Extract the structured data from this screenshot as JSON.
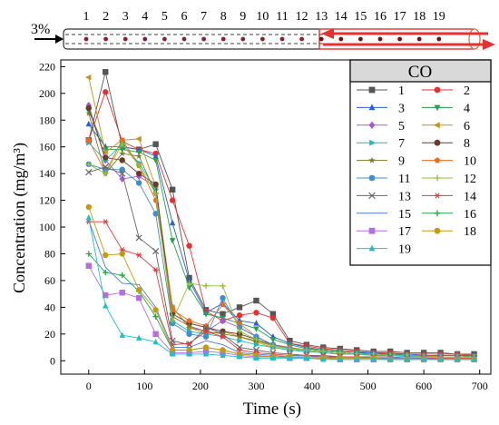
{
  "header": {
    "pct_label": "3%",
    "sensor_numbers": [
      "1",
      "2",
      "3",
      "4",
      "5",
      "6",
      "7",
      "8",
      "9",
      "10",
      "11",
      "12",
      "13",
      "14",
      "15",
      "16",
      "17",
      "18",
      "19"
    ]
  },
  "chart_data": {
    "type": "line",
    "title": "",
    "xlabel": "Time (s)",
    "ylabel": "Concentration (mg/m³)",
    "xlim": [
      -50,
      720
    ],
    "ylim": [
      -10,
      225
    ],
    "xticks": [
      0,
      100,
      200,
      300,
      400,
      500,
      600,
      700
    ],
    "yticks": [
      0,
      20,
      40,
      60,
      80,
      100,
      120,
      140,
      160,
      180,
      200,
      220
    ],
    "legend_title": "CO",
    "legend_position": "top-right",
    "x": [
      0,
      30,
      60,
      90,
      120,
      150,
      180,
      210,
      240,
      270,
      300,
      330,
      360,
      390,
      420,
      450,
      480,
      510,
      540,
      570,
      600,
      630,
      660,
      690
    ],
    "series": [
      {
        "name": "1",
        "color": "#555555",
        "marker": "square",
        "values": [
          165,
          216,
          160,
          158,
          162,
          128,
          62,
          38,
          35,
          40,
          45,
          35,
          15,
          12,
          10,
          9,
          8,
          7,
          7,
          6,
          6,
          6,
          5,
          5
        ]
      },
      {
        "name": "2",
        "color": "#e8312f",
        "marker": "circle",
        "values": [
          165,
          201,
          164,
          158,
          155,
          120,
          86,
          37,
          30,
          34,
          36,
          32,
          13,
          11,
          9,
          8,
          7,
          6,
          6,
          5,
          5,
          5,
          5,
          4
        ]
      },
      {
        "name": "3",
        "color": "#2a5fd8",
        "marker": "triangle-up",
        "values": [
          177,
          160,
          160,
          158,
          153,
          103,
          60,
          36,
          43,
          30,
          28,
          18,
          13,
          10,
          8,
          7,
          6,
          6,
          5,
          5,
          4,
          4,
          4,
          4
        ]
      },
      {
        "name": "4",
        "color": "#26a04a",
        "marker": "triangle-down",
        "values": [
          187,
          158,
          158,
          156,
          150,
          90,
          55,
          35,
          32,
          28,
          24,
          16,
          12,
          9,
          8,
          7,
          6,
          5,
          5,
          4,
          4,
          4,
          4,
          3
        ]
      },
      {
        "name": "5",
        "color": "#a55ad8",
        "marker": "diamond",
        "values": [
          191,
          150,
          136,
          138,
          130,
          40,
          25,
          22,
          30,
          25,
          18,
          12,
          10,
          8,
          7,
          6,
          5,
          5,
          4,
          4,
          4,
          3,
          3,
          3
        ]
      },
      {
        "name": "6",
        "color": "#c79215",
        "marker": "triangle-left",
        "values": [
          212,
          156,
          165,
          166,
          130,
          40,
          25,
          20,
          22,
          18,
          14,
          10,
          8,
          7,
          6,
          5,
          5,
          4,
          4,
          4,
          3,
          3,
          3,
          3
        ]
      },
      {
        "name": "7",
        "color": "#1fb8c2",
        "marker": "triangle-right",
        "values": [
          163,
          150,
          162,
          148,
          128,
          30,
          22,
          20,
          18,
          15,
          12,
          10,
          8,
          7,
          6,
          5,
          5,
          4,
          4,
          3,
          3,
          3,
          3,
          3
        ]
      },
      {
        "name": "8",
        "color": "#6b3a2a",
        "marker": "circle",
        "values": [
          189,
          152,
          150,
          140,
          132,
          35,
          28,
          25,
          22,
          20,
          16,
          12,
          9,
          8,
          7,
          6,
          5,
          5,
          4,
          4,
          4,
          3,
          3,
          3
        ]
      },
      {
        "name": "9",
        "color": "#7a7a28",
        "marker": "star",
        "values": [
          185,
          140,
          155,
          153,
          125,
          33,
          26,
          22,
          20,
          18,
          15,
          11,
          9,
          8,
          7,
          6,
          5,
          5,
          4,
          4,
          3,
          3,
          3,
          3
        ]
      },
      {
        "name": "10",
        "color": "#f06a1a",
        "marker": "pentagon",
        "values": [
          165,
          141,
          165,
          146,
          120,
          38,
          30,
          26,
          42,
          28,
          18,
          12,
          10,
          8,
          7,
          6,
          5,
          5,
          4,
          4,
          4,
          3,
          3,
          3
        ]
      },
      {
        "name": "11",
        "color": "#3d8fd1",
        "marker": "circle",
        "values": [
          147,
          143,
          143,
          133,
          110,
          28,
          20,
          18,
          47,
          25,
          18,
          12,
          9,
          8,
          7,
          6,
          5,
          5,
          4,
          4,
          3,
          3,
          3,
          3
        ]
      },
      {
        "name": "12",
        "color": "#8fc13a",
        "marker": "plus",
        "values": [
          147,
          140,
          162,
          146,
          125,
          30,
          58,
          56,
          56,
          22,
          16,
          11,
          9,
          8,
          7,
          6,
          5,
          5,
          4,
          4,
          3,
          3,
          3,
          3
        ]
      },
      {
        "name": "13",
        "color": "#666666",
        "marker": "x",
        "values": [
          141,
          145,
          140,
          92,
          82,
          15,
          12,
          25,
          20,
          10,
          8,
          6,
          5,
          4,
          4,
          3,
          3,
          3,
          3,
          2,
          2,
          2,
          2,
          2
        ]
      },
      {
        "name": "14",
        "color": "#e03a3a",
        "marker": "asterisk",
        "values": [
          104,
          104,
          83,
          79,
          68,
          12,
          13,
          22,
          18,
          8,
          6,
          5,
          4,
          4,
          3,
          3,
          3,
          2,
          2,
          2,
          2,
          2,
          2,
          2
        ]
      },
      {
        "name": "15",
        "color": "#4a7ae0",
        "marker": "none",
        "values": [
          105,
          70,
          58,
          57,
          40,
          10,
          10,
          15,
          12,
          6,
          5,
          4,
          3,
          3,
          3,
          2,
          2,
          2,
          2,
          2,
          2,
          1,
          1,
          1
        ]
      },
      {
        "name": "16",
        "color": "#22a846",
        "marker": "plus",
        "values": [
          80,
          66,
          64,
          52,
          33,
          8,
          8,
          10,
          8,
          5,
          4,
          3,
          3,
          2,
          2,
          2,
          2,
          2,
          1,
          1,
          1,
          1,
          1,
          1
        ]
      },
      {
        "name": "17",
        "color": "#b070e0",
        "marker": "square",
        "values": [
          71,
          49,
          51,
          47,
          20,
          6,
          6,
          7,
          6,
          4,
          3,
          3,
          2,
          2,
          2,
          1,
          1,
          1,
          1,
          1,
          1,
          1,
          1,
          1
        ]
      },
      {
        "name": "18",
        "color": "#c49a10",
        "marker": "circle",
        "values": [
          115,
          79,
          80,
          53,
          38,
          8,
          8,
          10,
          8,
          5,
          4,
          3,
          3,
          2,
          2,
          2,
          2,
          2,
          1,
          1,
          1,
          1,
          1,
          1
        ]
      },
      {
        "name": "19",
        "color": "#18c2c8",
        "marker": "triangle-up",
        "values": [
          107,
          41,
          19,
          17,
          14,
          5,
          5,
          5,
          4,
          3,
          2,
          2,
          2,
          2,
          1,
          1,
          1,
          1,
          1,
          1,
          1,
          1,
          1,
          1
        ]
      }
    ]
  }
}
